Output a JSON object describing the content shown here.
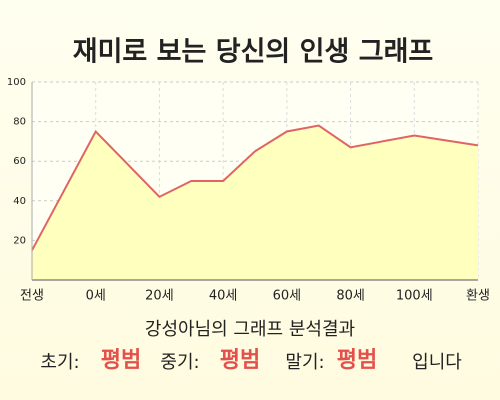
{
  "chart_data": {
    "type": "area",
    "title": "재미로 보는 당신의 인생 그래프",
    "x": [
      0,
      1,
      2,
      2.5,
      3,
      3.5,
      4,
      4.5,
      5,
      6,
      7
    ],
    "values": [
      15,
      75,
      42,
      50,
      50,
      65,
      75,
      78,
      67,
      73,
      68
    ],
    "xlim": [
      0,
      7
    ],
    "xticks": [
      {
        "value": 0,
        "label": "전생"
      },
      {
        "value": 1,
        "label": "0세"
      },
      {
        "value": 2,
        "label": "20세"
      },
      {
        "value": 3,
        "label": "40세"
      },
      {
        "value": 4,
        "label": "60세"
      },
      {
        "value": 5,
        "label": "80세"
      },
      {
        "value": 6,
        "label": "100세"
      },
      {
        "value": 7,
        "label": "환생"
      }
    ],
    "ylim": [
      0,
      100
    ],
    "yticks": [
      20,
      40,
      60,
      80,
      100
    ],
    "color": "#e06464",
    "fill": "#ffffbe",
    "grid": true
  },
  "summary": {
    "heading": "강성아님의 그래프 분석결과",
    "parts": [
      {
        "label": "초기:",
        "result": "평범"
      },
      {
        "label": "중기:",
        "result": "평범"
      },
      {
        "label": "말기:",
        "result": "평범"
      }
    ],
    "ending": "입니다"
  }
}
